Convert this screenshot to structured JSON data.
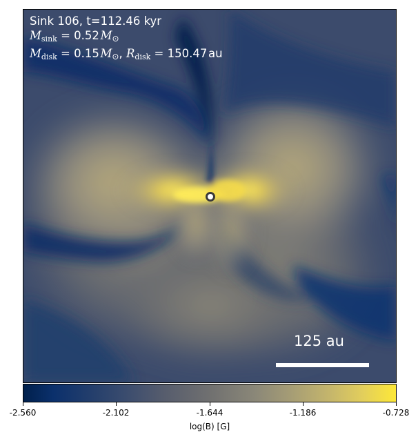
{
  "annotation": {
    "sink_prefix": "Sink 106, t=112.46 kyr",
    "m_sink_symbol": "M",
    "m_sink_sub": "sink",
    "m_sink_value": "0.52",
    "m_disk_symbol": "M",
    "m_disk_sub": "disk",
    "m_disk_value": "0.15",
    "r_disk_symbol": "R",
    "r_disk_sub": "disk",
    "r_disk_value": "150.47",
    "r_disk_unit": "au",
    "sun_symbol": "⊙"
  },
  "scale_bar": {
    "label": "125 au"
  },
  "colorbar": {
    "label": "log(B) [G]",
    "ticks": [
      "-2.560",
      "-2.102",
      "-1.644",
      "-1.186",
      "-0.728"
    ],
    "colormap": "cividis"
  },
  "colors": {
    "low": "#00204c",
    "mid": "#707070",
    "high": "#fde838",
    "background": "#3b4a6b"
  }
}
